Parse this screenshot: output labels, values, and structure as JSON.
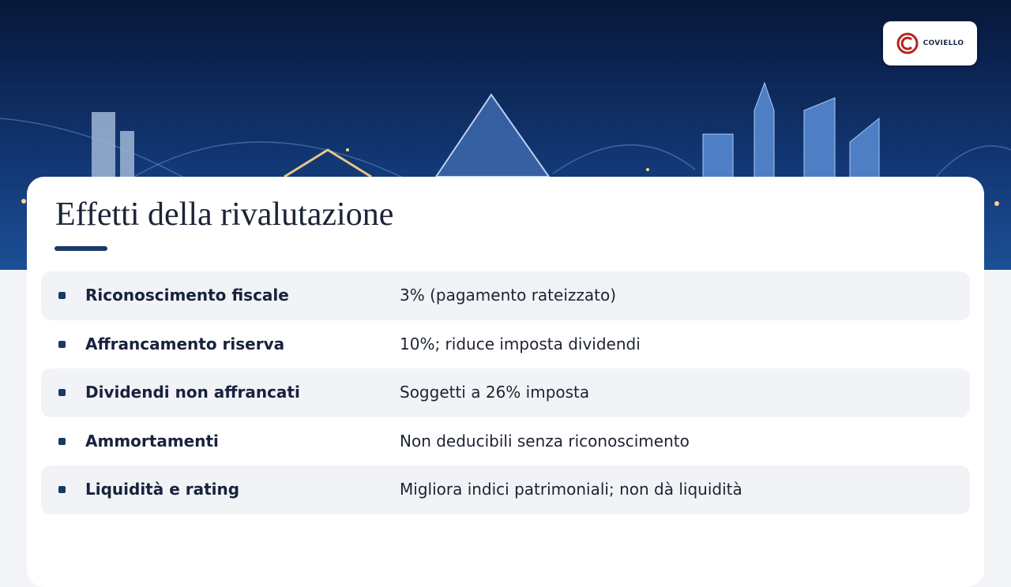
{
  "logo": {
    "name": "COVIELLO"
  },
  "title": "Effetti della rivalutazione",
  "rows": [
    {
      "label": "Riconoscimento fiscale",
      "value": "3% (pagamento rateizzato)"
    },
    {
      "label": "Affrancamento riserva",
      "value": "10%; riduce imposta dividendi"
    },
    {
      "label": "Dividendi non affrancati",
      "value": "Soggetti a 26% imposta"
    },
    {
      "label": "Ammortamenti",
      "value": "Non deducibili senza riconoscimento"
    },
    {
      "label": "Liquidità e rating",
      "value": "Migliora indici patrimoniali; non dà liquidità"
    }
  ]
}
